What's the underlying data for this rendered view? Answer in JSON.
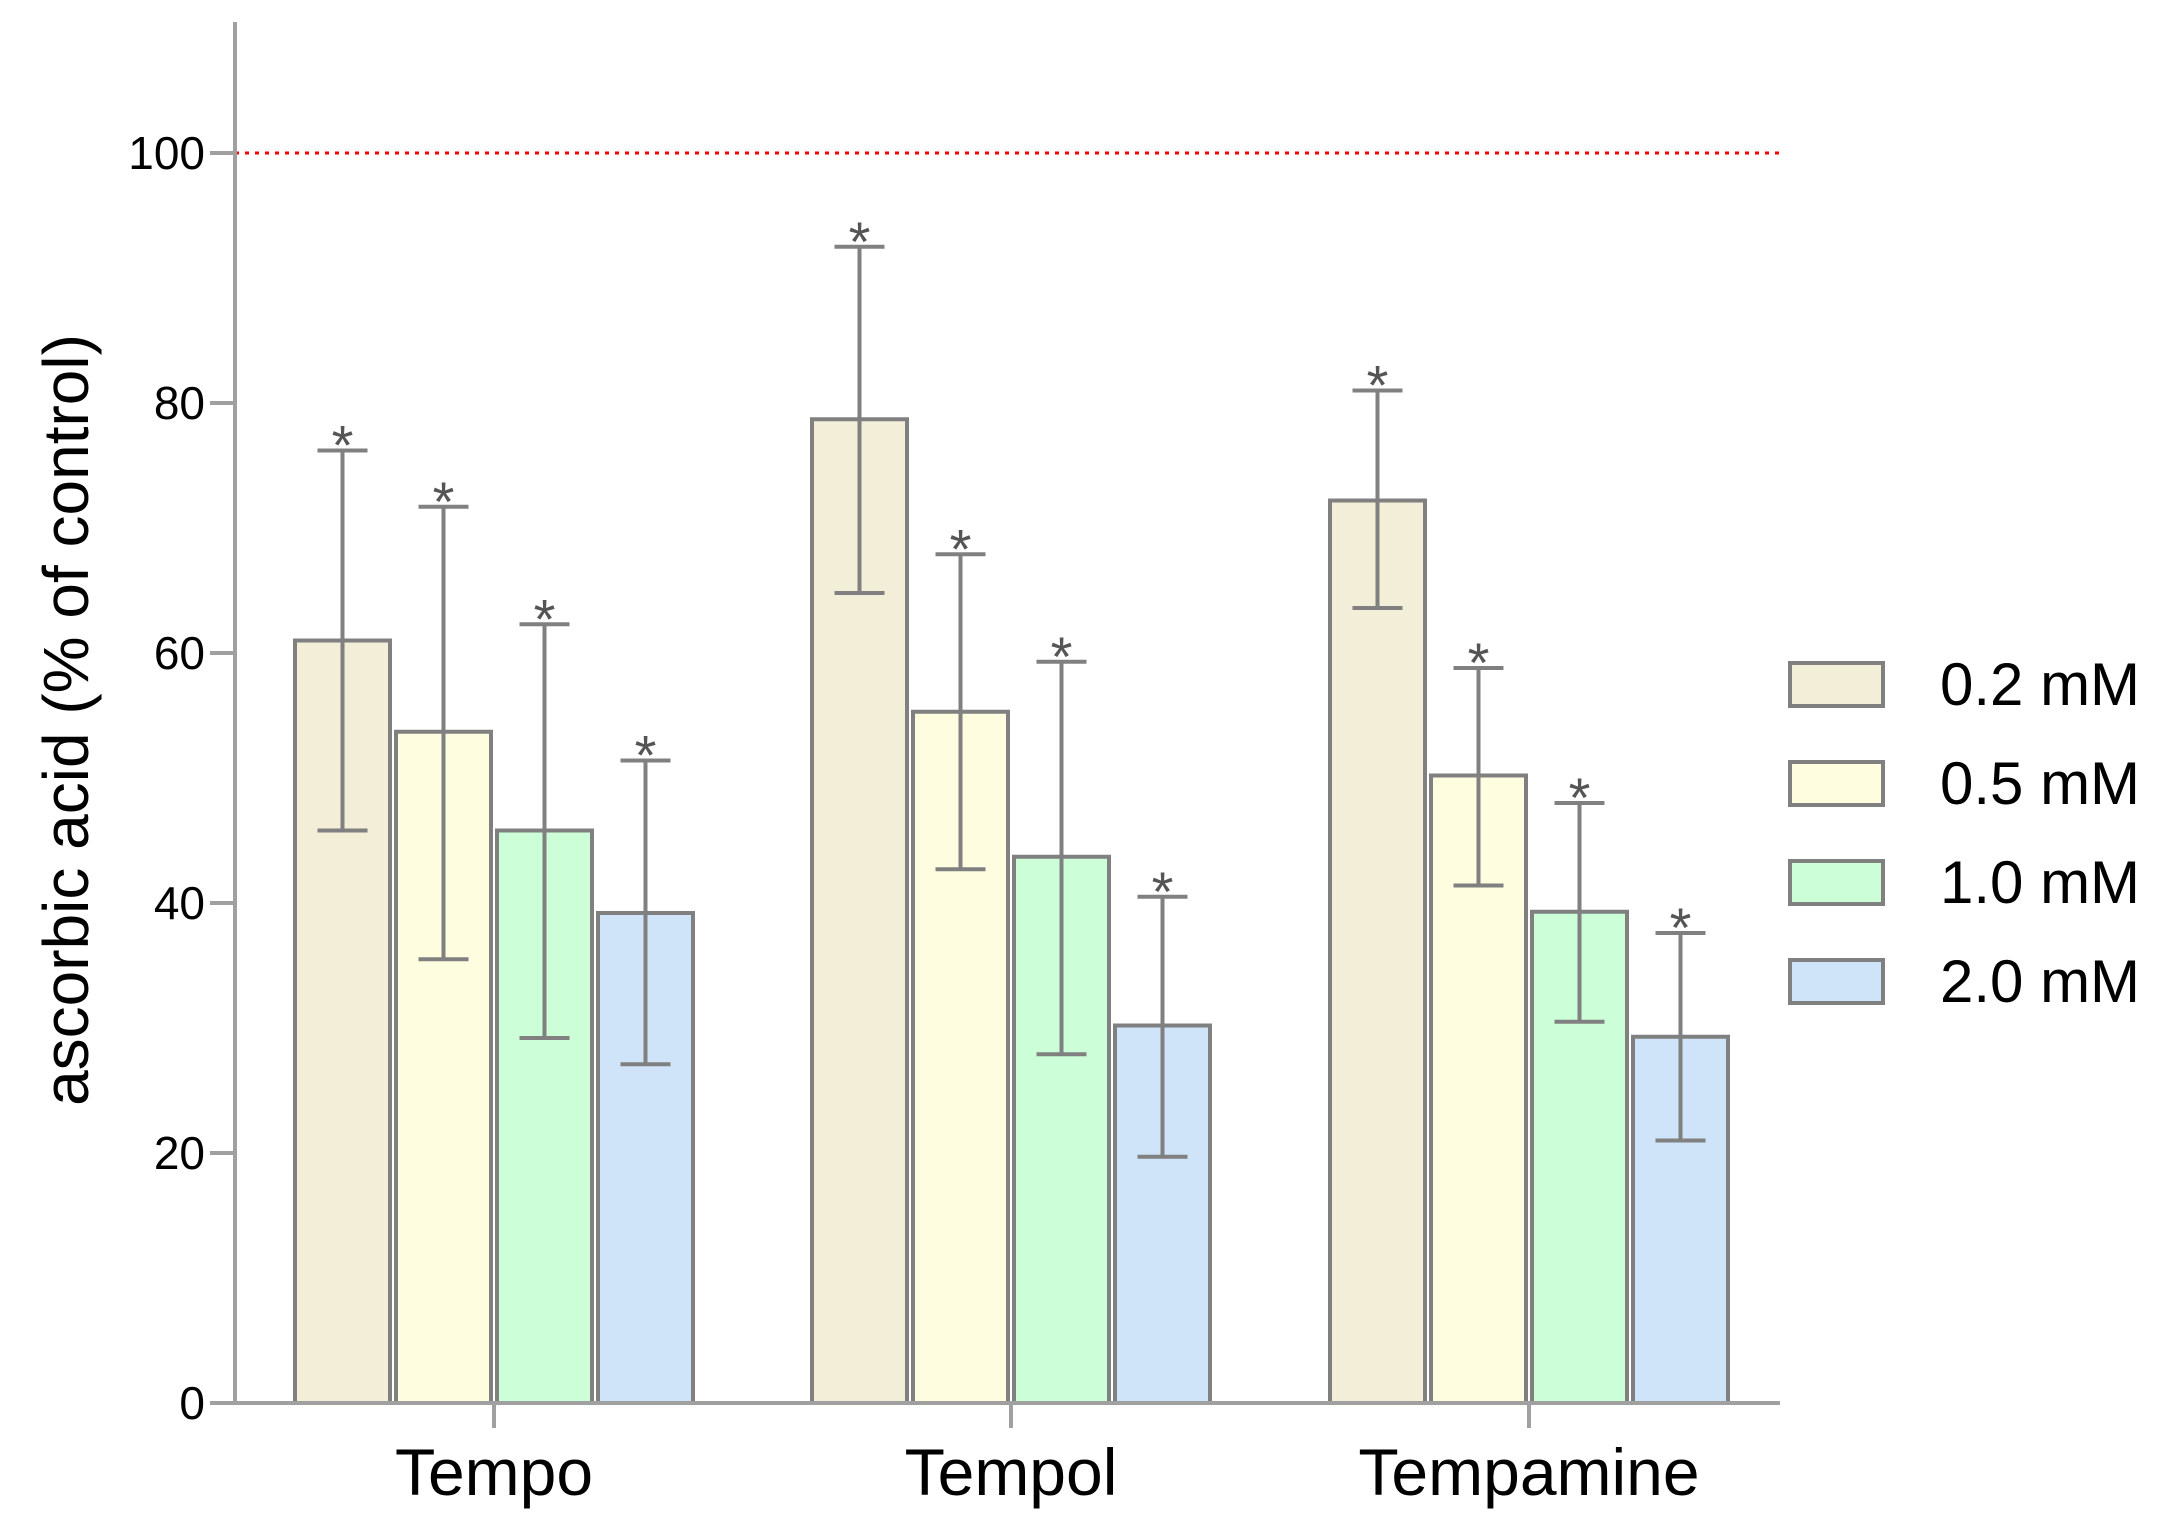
{
  "chart_data": {
    "type": "bar",
    "title": "",
    "xlabel": "",
    "ylabel": "ascorbic acid (% of control)",
    "ylim": [
      0,
      110
    ],
    "yticks": [
      0,
      20,
      40,
      60,
      80,
      100
    ],
    "grid": false,
    "legend_position": "right",
    "categories": [
      "Tempo",
      "Tempol",
      "Tempamine"
    ],
    "series": [
      {
        "name": "0.2 mM",
        "color": "#f2eed8",
        "values": [
          61,
          78.7,
          72.2
        ],
        "err_low": [
          45.8,
          64.8,
          63.6
        ],
        "err_high": [
          76.2,
          92.5,
          81.0
        ],
        "sig": [
          "*",
          "*",
          "*"
        ]
      },
      {
        "name": "0.5 mM",
        "color": "#fffde0",
        "values": [
          53.7,
          55.3,
          50.2
        ],
        "err_low": [
          35.5,
          42.7,
          41.4
        ],
        "err_high": [
          71.7,
          67.9,
          58.8
        ],
        "sig": [
          "*",
          "*",
          "*"
        ]
      },
      {
        "name": "1.0 mM",
        "color": "#ccffd8",
        "values": [
          45.8,
          43.7,
          39.3
        ],
        "err_low": [
          29.2,
          27.9,
          30.5
        ],
        "err_high": [
          62.3,
          59.3,
          48.0
        ],
        "sig": [
          "*",
          "*",
          "*"
        ]
      },
      {
        "name": "2.0 mM",
        "color": "#cfe4f9",
        "values": [
          39.2,
          30.2,
          29.3
        ],
        "err_low": [
          27.1,
          19.7,
          21.0
        ],
        "err_high": [
          51.4,
          40.5,
          37.6
        ],
        "sig": [
          "*",
          "*",
          "*"
        ]
      }
    ],
    "reference_line": {
      "value": 100,
      "color": "#ff0000",
      "style": "dotted"
    },
    "colors": {
      "axis": "#a0a0a0",
      "bar_stroke": "#808080",
      "error_bar": "#808080"
    }
  }
}
